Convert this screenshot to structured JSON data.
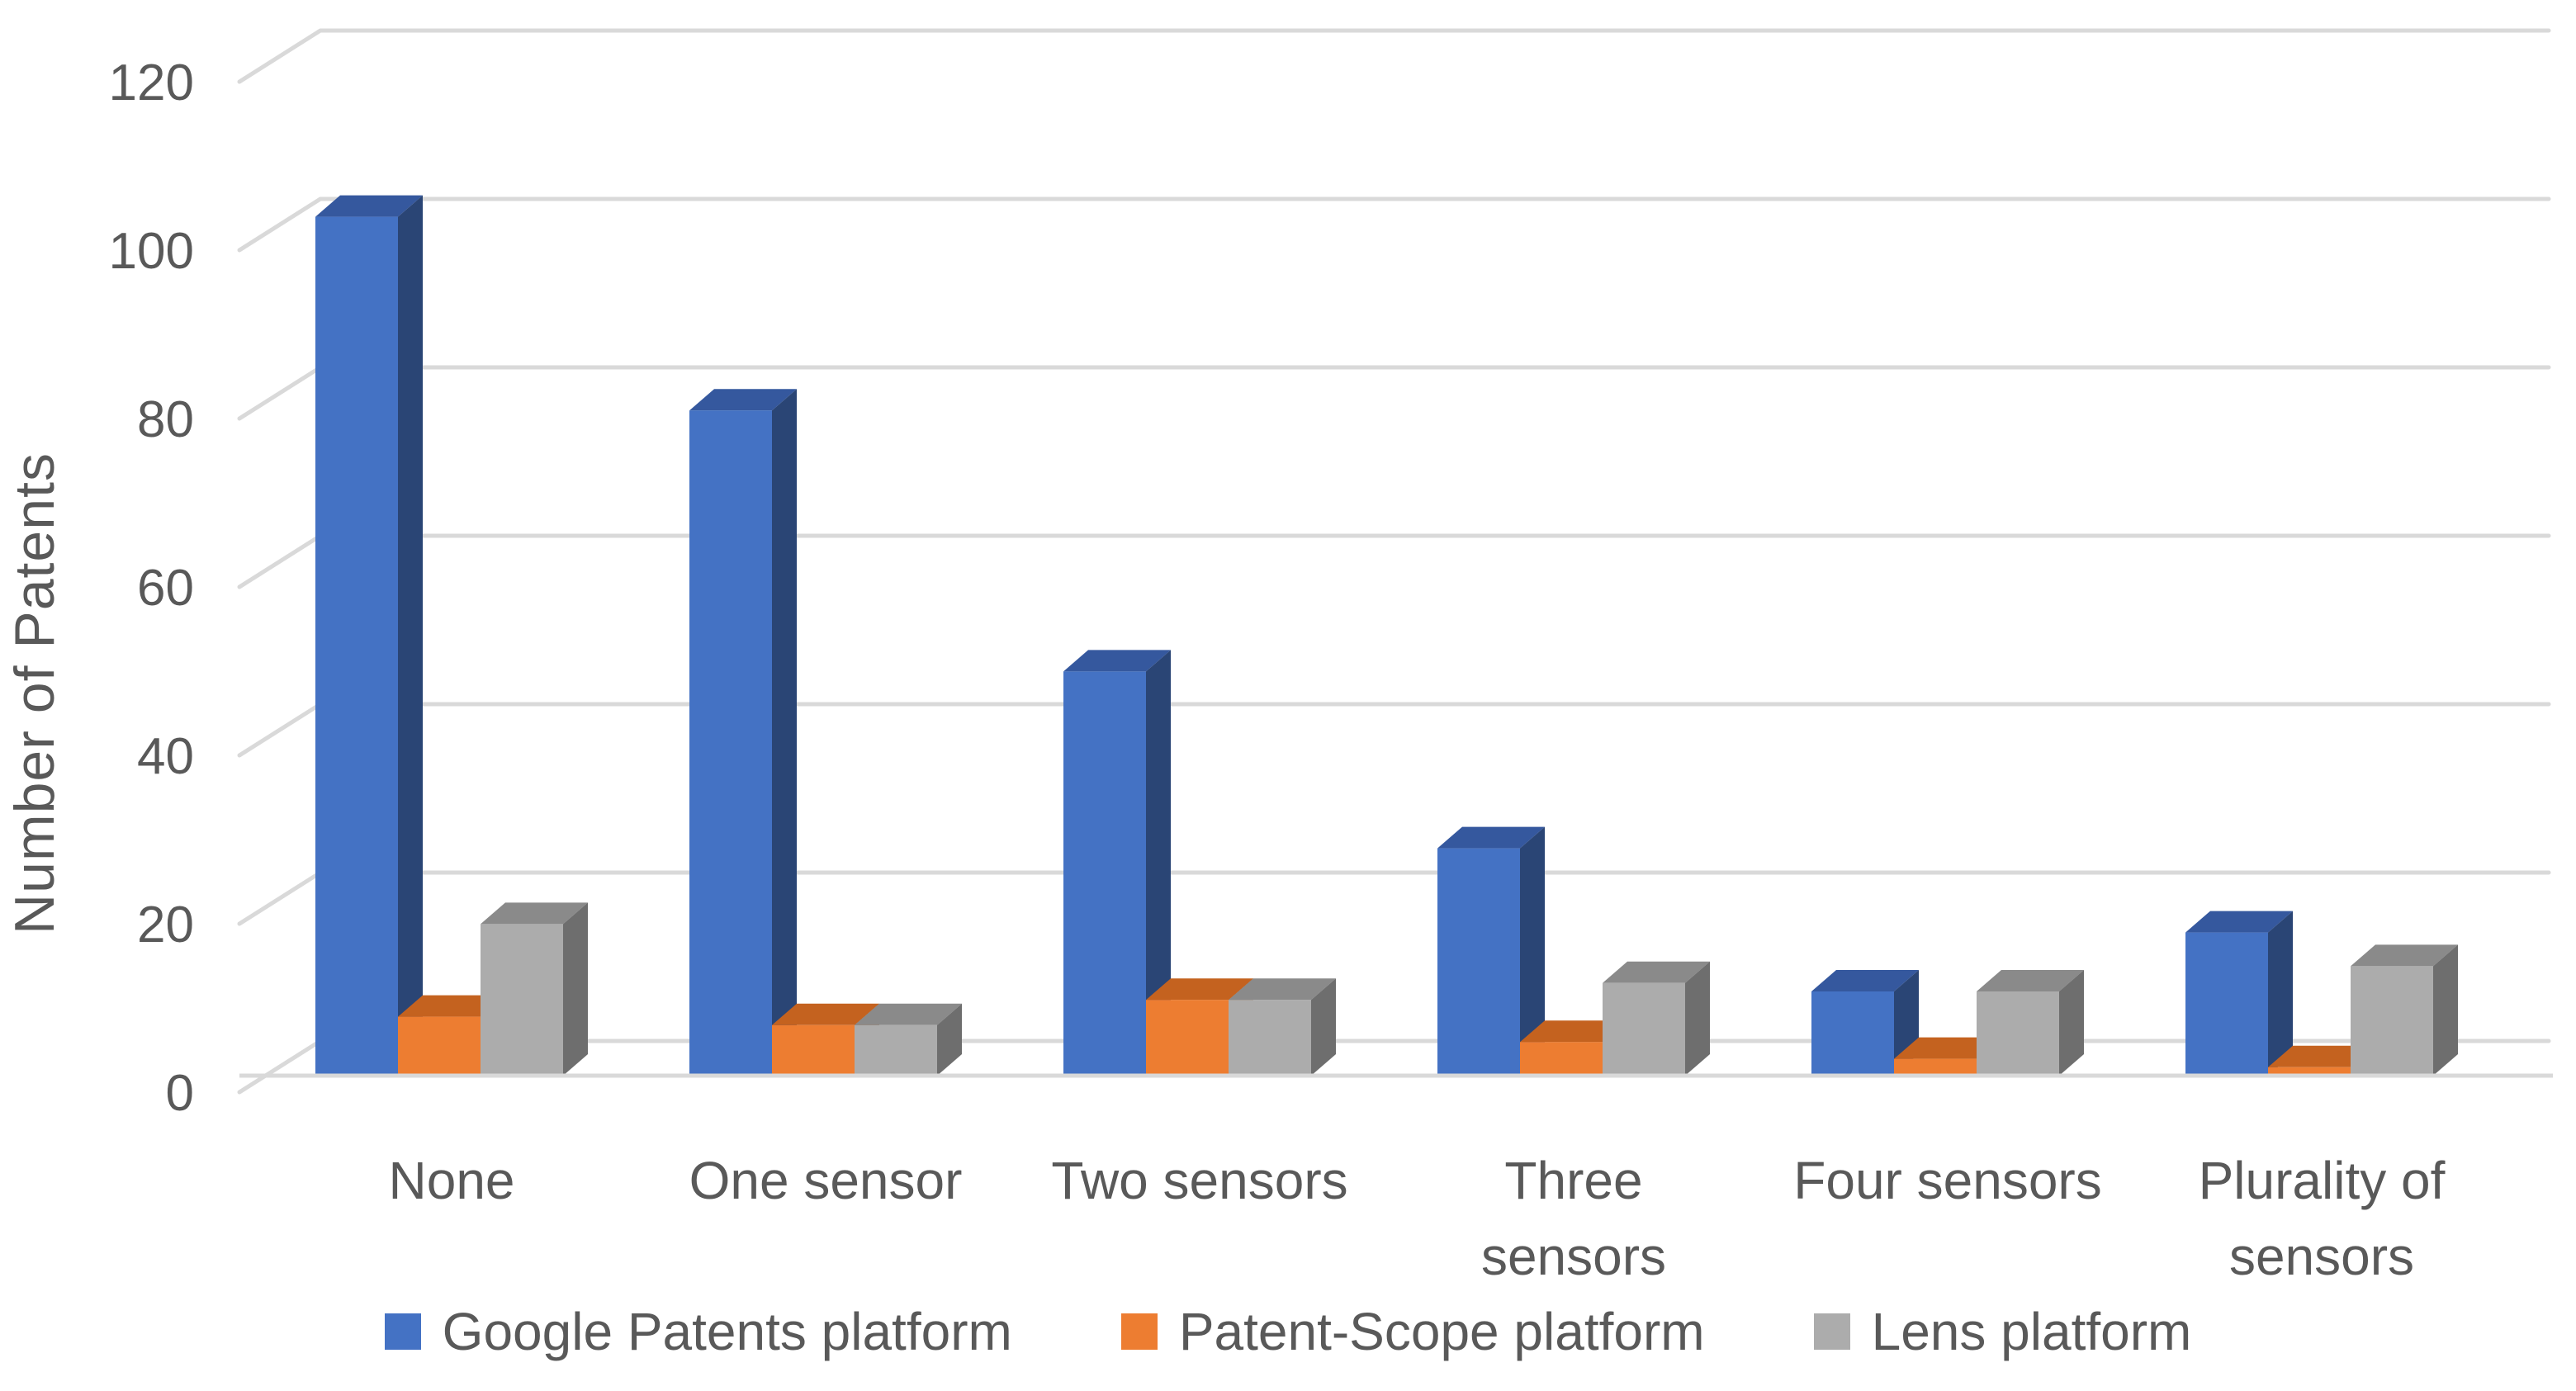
{
  "chart_data": {
    "type": "bar",
    "subtype": "3d-clustered-column",
    "title": "",
    "xlabel": "",
    "ylabel": "Number of Patents",
    "categories": [
      "None",
      "One sensor",
      "Two sensors",
      "Three sensors",
      "Four sensors",
      "Plurality of sensors"
    ],
    "category_label_lines": [
      [
        "None"
      ],
      [
        "One sensor"
      ],
      [
        "Two sensors"
      ],
      [
        "Three",
        "sensors"
      ],
      [
        "Four sensors"
      ],
      [
        "Plurality of",
        "sensors"
      ]
    ],
    "series": [
      {
        "name": "Google Patents platform",
        "color": "#4472C4",
        "color_top": "#35589E",
        "color_side": "#2A4575",
        "values": [
          102,
          79,
          48,
          27,
          10,
          17
        ]
      },
      {
        "name": "Patent-Scope platform",
        "color": "#ED7D31",
        "color_top": "#C4621F",
        "color_side": "#9E4E19",
        "values": [
          7,
          6,
          9,
          4,
          2,
          1
        ]
      },
      {
        "name": "Lens platform",
        "color": "#ACACAC",
        "color_top": "#8A8A8A",
        "color_side": "#6E6E6E",
        "values": [
          18,
          6,
          9,
          11,
          10,
          13
        ]
      }
    ],
    "yticks": [
      0,
      20,
      40,
      60,
      80,
      100,
      120
    ],
    "ylim": [
      0,
      120
    ],
    "grid": true,
    "legend_position": "bottom",
    "gridline_color": "#D9D9D9",
    "text_color": "#595959",
    "background": "#FFFFFF"
  }
}
